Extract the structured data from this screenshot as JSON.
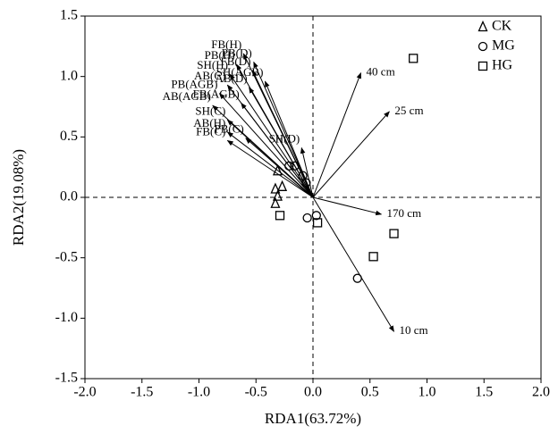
{
  "chart_data": {
    "type": "scatter",
    "xlabel": "RDA1(63.72%)",
    "ylabel": "RDA2(19.08%)",
    "xlim": [
      -2,
      2
    ],
    "ylim": [
      -1.5,
      1.5
    ],
    "xticks": [
      {
        "value": -2,
        "label": "-2.0"
      },
      -1.5,
      {
        "value": -1,
        "label": "-1.0"
      },
      -0.5,
      {
        "value": 0,
        "label": "0.0"
      },
      0.5,
      {
        "value": 1,
        "label": "1.0"
      },
      1.5,
      {
        "value": 2,
        "label": "2.0"
      }
    ],
    "yticks": [
      -1.5,
      {
        "value": -1,
        "label": "-1.0"
      },
      -0.5,
      {
        "value": 0,
        "label": "0.0"
      },
      0.5,
      {
        "value": 1,
        "label": "1.0"
      },
      1.5
    ],
    "legend": "upper right",
    "series": [
      {
        "name": "CK",
        "marker": "triangle",
        "color": "#000000",
        "x": [
          -0.31,
          -0.27,
          -0.33,
          -0.31,
          -0.33
        ],
        "values": [
          0.22,
          0.09,
          0.07,
          0.01,
          -0.05
        ]
      },
      {
        "name": "MG",
        "marker": "circle",
        "color": "#000000",
        "x": [
          -0.16,
          -0.21,
          -0.09,
          -0.06,
          -0.05,
          0.03,
          0.39
        ],
        "values": [
          0.26,
          0.26,
          0.18,
          0.12,
          -0.17,
          -0.15,
          -0.67
        ]
      },
      {
        "name": "HG",
        "marker": "square",
        "color": "#000000",
        "x": [
          0.88,
          -0.29,
          0.04,
          0.71,
          0.53
        ],
        "values": [
          1.15,
          -0.15,
          -0.21,
          -0.3,
          -0.49
        ]
      }
    ],
    "vectors": [
      {
        "label": "40 cm",
        "x": 0.42,
        "y": 1.03
      },
      {
        "label": "25 cm",
        "x": 0.67,
        "y": 0.71
      },
      {
        "label": "170 cm",
        "x": 0.6,
        "y": -0.14
      },
      {
        "label": "10 cm",
        "x": 0.71,
        "y": -1.11
      },
      {
        "label": "FB(H)",
        "x": -0.61,
        "y": 1.19
      },
      {
        "label": "PB(D)",
        "x": -0.52,
        "y": 1.12
      },
      {
        "label": "FB(D)",
        "x": -0.53,
        "y": 1.05
      },
      {
        "label": "SH(AGB)",
        "x": -0.42,
        "y": 0.96
      },
      {
        "label": "PB(H)",
        "x": -0.67,
        "y": 1.1
      },
      {
        "label": "SH(H)",
        "x": -0.73,
        "y": 1.02
      },
      {
        "label": "AB(C)",
        "x": -0.75,
        "y": 0.93
      },
      {
        "label": "AB(D)",
        "x": -0.56,
        "y": 0.91
      },
      {
        "label": "PB(AGB)",
        "x": -0.82,
        "y": 0.86
      },
      {
        "label": "AB(AGB)",
        "x": -0.88,
        "y": 0.76
      },
      {
        "label": "FB(AGB)",
        "x": -0.63,
        "y": 0.78
      },
      {
        "label": "SH(C)",
        "x": -0.75,
        "y": 0.64
      },
      {
        "label": "AB(H)",
        "x": -0.75,
        "y": 0.54
      },
      {
        "label": "PB(C)",
        "x": -0.59,
        "y": 0.49
      },
      {
        "label": "FB(C)",
        "x": -0.75,
        "y": 0.47
      },
      {
        "label": "SH(D)",
        "x": -0.1,
        "y": 0.41
      }
    ]
  }
}
